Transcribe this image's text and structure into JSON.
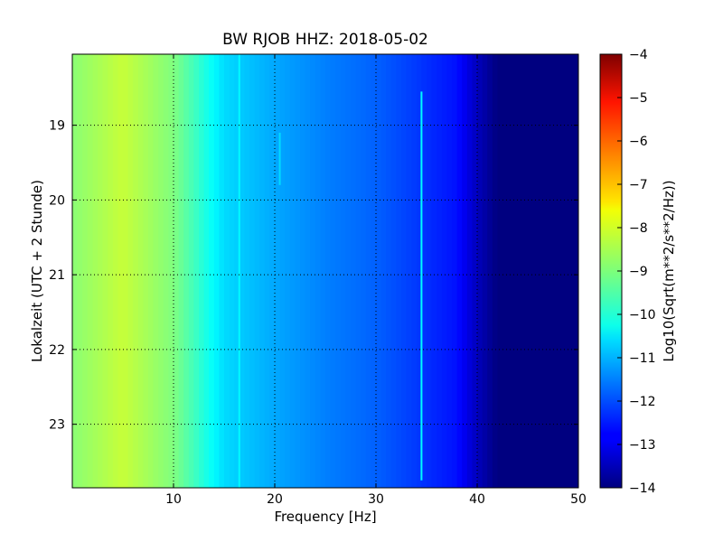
{
  "chart_data": {
    "type": "heatmap",
    "title": "BW RJOB HHZ: 2018-05-02",
    "xlabel": "Frequency [Hz]",
    "ylabel": "Lokalzeit (UTC + 2 Stunde)",
    "xlim": [
      0,
      50
    ],
    "ylim": [
      23.85,
      18.05
    ],
    "y_inverted": true,
    "xticks": [
      10,
      20,
      30,
      40,
      50
    ],
    "yticks": [
      19,
      20,
      21,
      22,
      23
    ],
    "grid": true,
    "colormap": "jet",
    "colorbar": {
      "label": "Log10(Sqrt(m**2/s**2/Hz))",
      "range": [
        -14,
        -4
      ],
      "ticks": [
        -14,
        -13,
        -12,
        -11,
        -10,
        -9,
        -8,
        -7,
        -6,
        -5,
        -4
      ],
      "tick_labels": [
        "−14",
        "−13",
        "−12",
        "−11",
        "−10",
        "−9",
        "−8",
        "−7",
        "−6",
        "−5",
        "−4"
      ]
    },
    "frequency_profile": {
      "frequency_hz": [
        0,
        5,
        10,
        12,
        15,
        20,
        25,
        30,
        34,
        38,
        40,
        42,
        50
      ],
      "log10_amplitude": [
        -8.9,
        -8.3,
        -9.0,
        -9.6,
        -10.6,
        -11.1,
        -11.5,
        -11.8,
        -12.2,
        -12.6,
        -13.4,
        -14.0,
        -14.0
      ]
    },
    "line_features": [
      {
        "frequency_hz": 34.5,
        "time_start": 18.55,
        "time_end": 23.75,
        "log10_amplitude": -10.3
      },
      {
        "frequency_hz": 20.5,
        "time_start": 19.1,
        "time_end": 19.8,
        "log10_amplitude": -10.6
      },
      {
        "frequency_hz": 16.5,
        "time_start": 18.05,
        "time_end": 23.85,
        "log10_amplitude": -10.3
      }
    ]
  }
}
